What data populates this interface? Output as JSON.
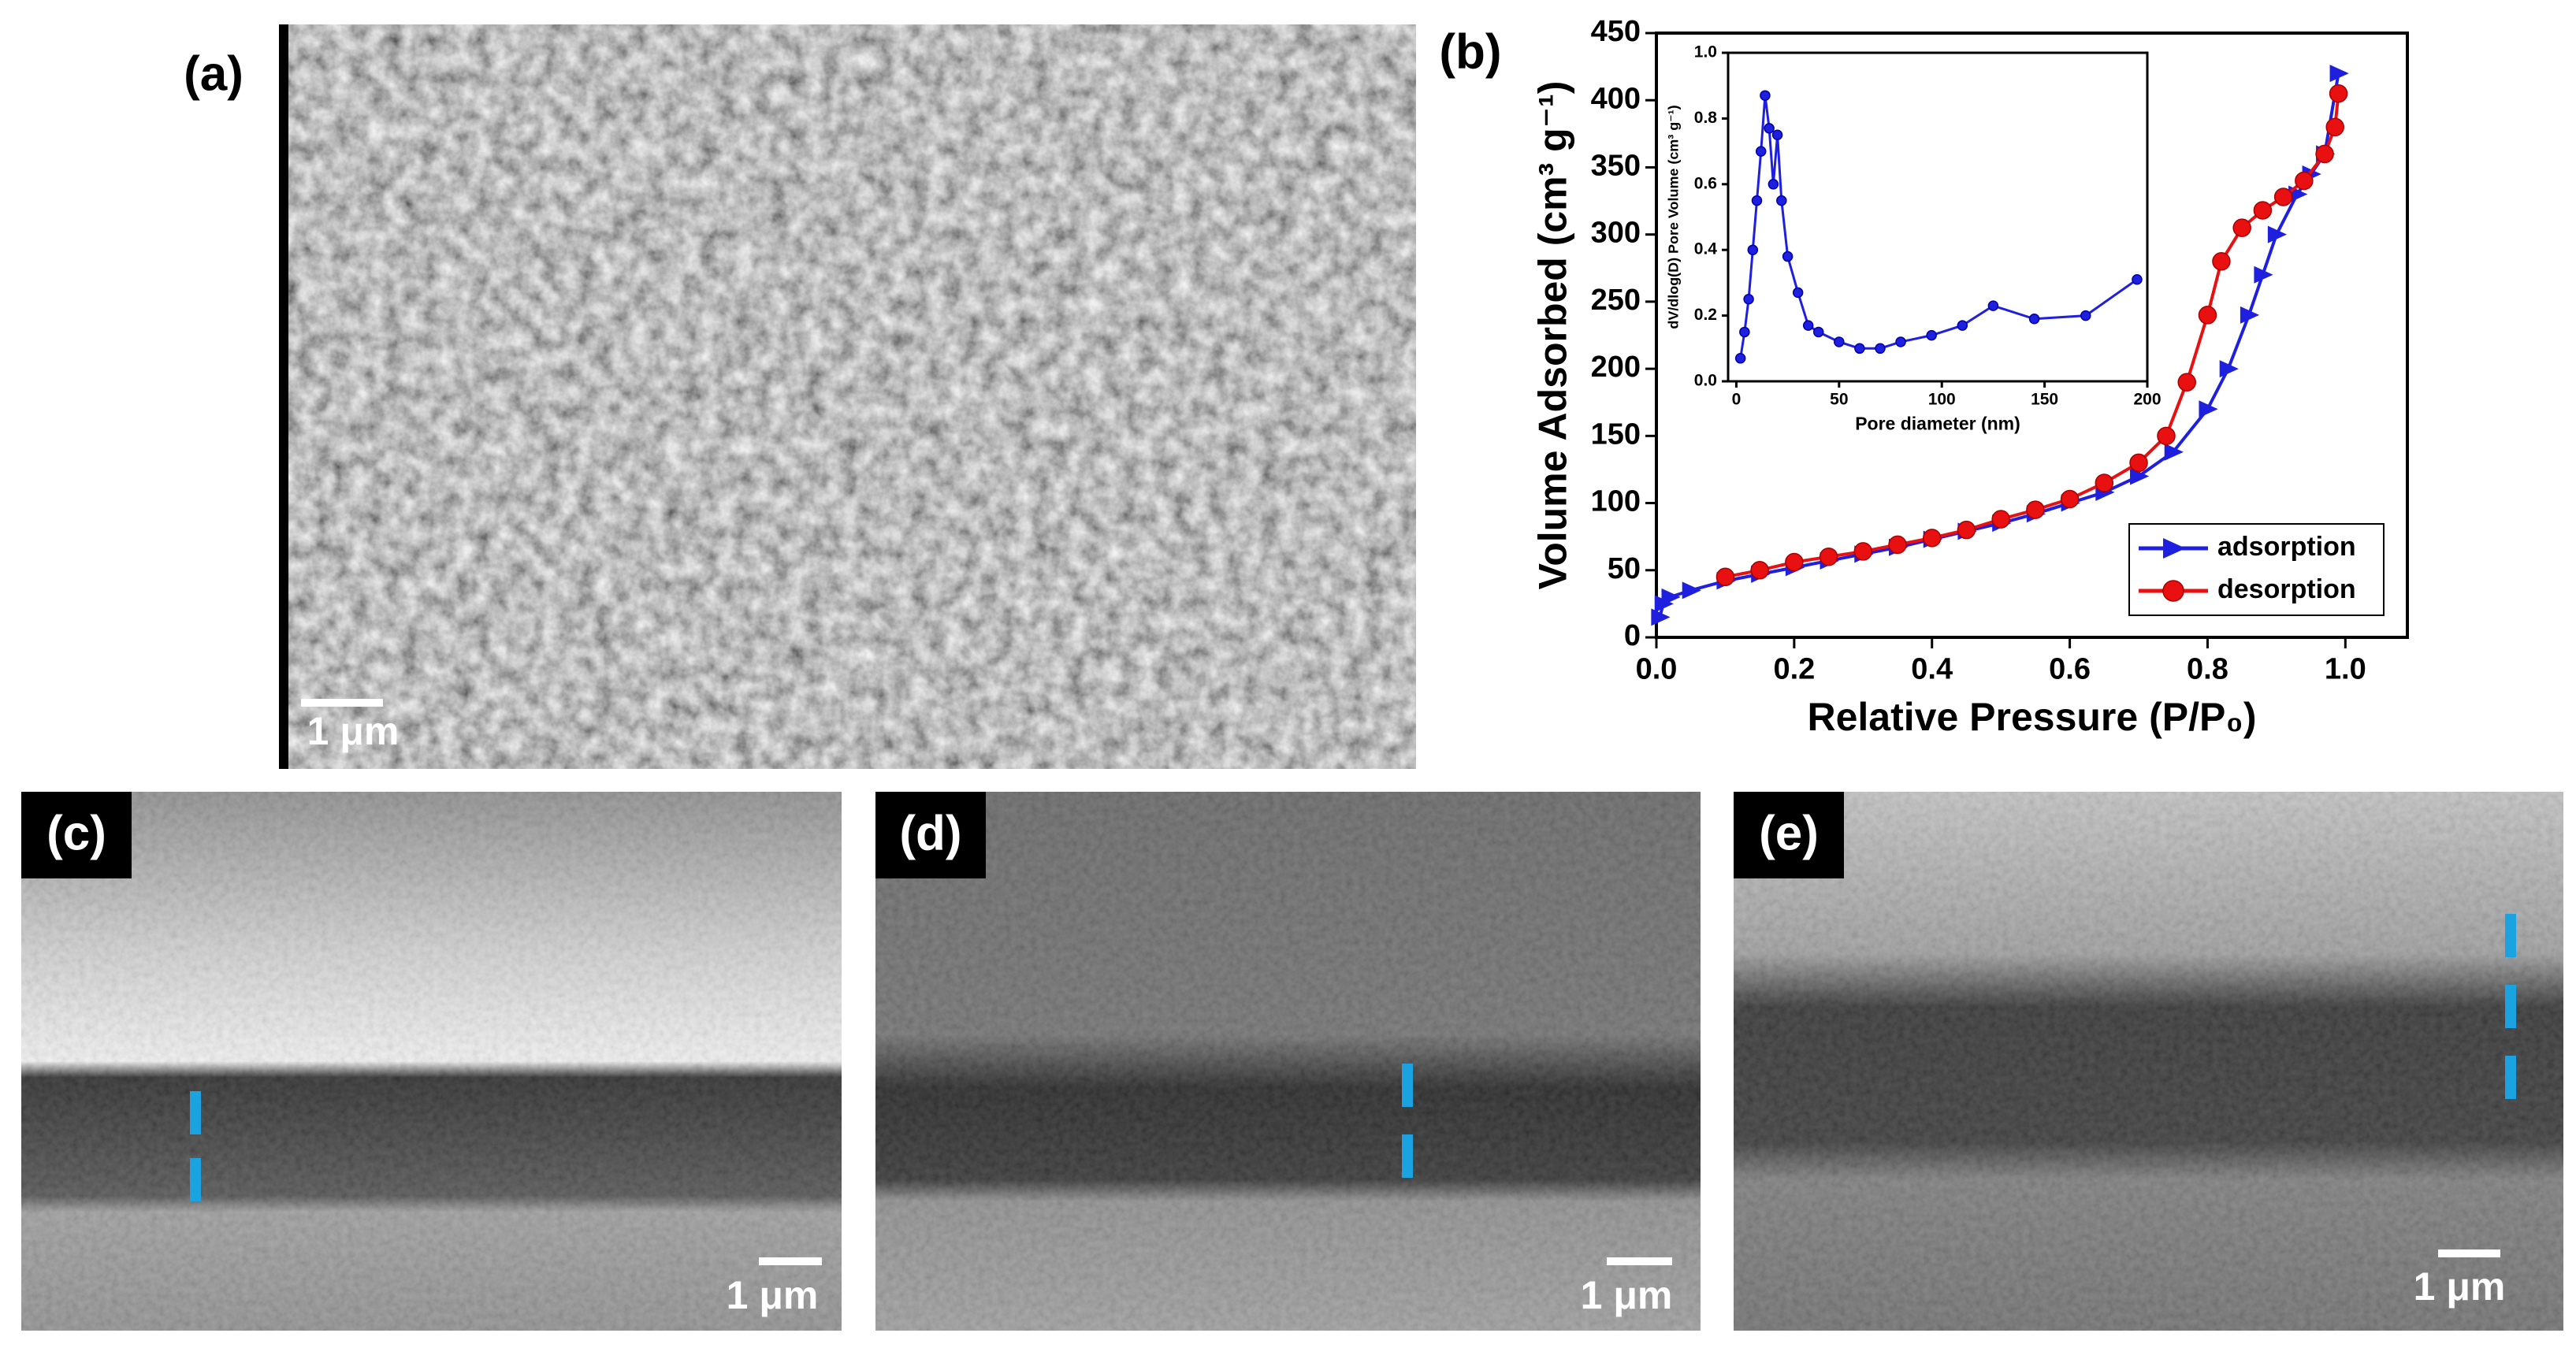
{
  "panels": [
    {
      "label": "(a)",
      "scale_bar": "1 μm"
    },
    {
      "label": "(b)"
    },
    {
      "label": "(c)",
      "scale_bar": "1 μm"
    },
    {
      "label": "(d)",
      "scale_bar": "1 μm"
    },
    {
      "label": "(e)",
      "scale_bar": "1 μm"
    }
  ],
  "chart_data": [
    {
      "type": "line",
      "xlabel": "Relative Pressure (P/P₀)",
      "ylabel": "Volume Adsorbed (cm³ g⁻¹)",
      "xlim": [
        0,
        1.09
      ],
      "ylim": [
        0,
        450
      ],
      "xticks": [
        {
          "value": 0,
          "label": "0.0"
        },
        0.2,
        0.4,
        0.6,
        0.8,
        {
          "value": 1,
          "label": "1.0"
        }
      ],
      "yticks": [
        0,
        50,
        100,
        150,
        200,
        250,
        300,
        350,
        400,
        450
      ],
      "legend": "lower right",
      "series": [
        {
          "name": "adsorption",
          "color": "#1f1fe0",
          "marker": "triangle",
          "x": [
            0.005,
            0.01,
            0.02,
            0.05,
            0.1,
            0.15,
            0.2,
            0.25,
            0.3,
            0.35,
            0.4,
            0.45,
            0.5,
            0.55,
            0.6,
            0.65,
            0.7,
            0.75,
            0.8,
            0.83,
            0.86,
            0.88,
            0.9,
            0.93,
            0.95,
            0.97,
            0.99
          ],
          "values": [
            15,
            25,
            30,
            35,
            42,
            47,
            52,
            57,
            62,
            67,
            73,
            79,
            85,
            92,
            100,
            108,
            120,
            138,
            170,
            200,
            240,
            270,
            300,
            330,
            345,
            360,
            420
          ]
        },
        {
          "name": "desorption",
          "color": "#e81010",
          "marker": "circle",
          "x": [
            0.1,
            0.15,
            0.2,
            0.25,
            0.3,
            0.35,
            0.4,
            0.45,
            0.5,
            0.55,
            0.6,
            0.65,
            0.7,
            0.74,
            0.77,
            0.8,
            0.82,
            0.85,
            0.88,
            0.91,
            0.94,
            0.97,
            0.985,
            0.99
          ],
          "values": [
            45,
            50,
            56,
            60,
            64,
            69,
            74,
            80,
            88,
            95,
            103,
            115,
            130,
            150,
            190,
            240,
            280,
            305,
            318,
            328,
            340,
            360,
            380,
            405
          ]
        }
      ]
    },
    {
      "type": "line",
      "xlabel": "Pore diameter (nm)",
      "ylabel": "dV/dlog(D) Pore Volume (cm³ g⁻¹)",
      "xlim": [
        -4,
        200
      ],
      "ylim": [
        0,
        1
      ],
      "xticks": [
        0,
        50,
        100,
        150,
        200
      ],
      "yticks": [
        {
          "value": 0,
          "label": "0.0"
        },
        0.2,
        0.4,
        0.6,
        0.8,
        {
          "value": 1,
          "label": "1.0"
        }
      ],
      "series": [
        {
          "color": "#1f1fe0",
          "marker": "circle",
          "x": [
            2,
            4,
            6,
            8,
            10,
            12,
            14,
            16,
            18,
            20,
            22,
            25,
            30,
            35,
            40,
            50,
            60,
            70,
            80,
            95,
            110,
            125,
            145,
            170,
            195
          ],
          "values": [
            0.07,
            0.15,
            0.25,
            0.4,
            0.55,
            0.7,
            0.87,
            0.77,
            0.6,
            0.75,
            0.55,
            0.38,
            0.27,
            0.17,
            0.15,
            0.12,
            0.1,
            0.1,
            0.12,
            0.14,
            0.17,
            0.23,
            0.19,
            0.2,
            0.31
          ]
        }
      ]
    }
  ]
}
